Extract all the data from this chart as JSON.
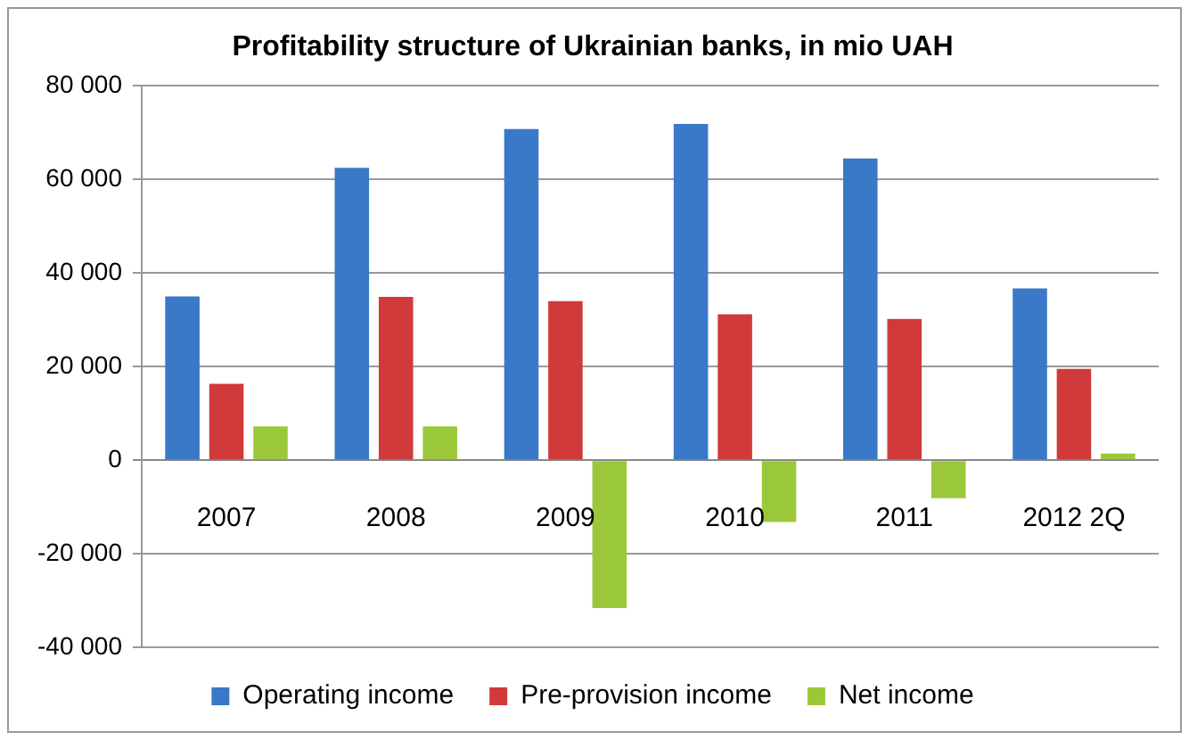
{
  "chart_data": {
    "type": "bar",
    "title": "Profitability structure of Ukrainian banks, in mio UAH",
    "categories": [
      "2007",
      "2008",
      "2009",
      "2010",
      "2011",
      "2012 2Q"
    ],
    "series": [
      {
        "name": "Operating income",
        "color": "#3a78c8",
        "values": [
          35000,
          62500,
          70800,
          71900,
          64500,
          36700
        ]
      },
      {
        "name": "Pre-provision income",
        "color": "#d03a3a",
        "values": [
          16300,
          34900,
          34000,
          31200,
          30200,
          19500
        ]
      },
      {
        "name": "Net income",
        "color": "#9bc83a",
        "values": [
          7200,
          7200,
          -31600,
          -13200,
          -8100,
          1400
        ]
      }
    ],
    "ylim": [
      -40000,
      80000
    ],
    "yticks": [
      {
        "value": -40000,
        "label": "-40 000"
      },
      {
        "value": -20000,
        "label": "-20 000"
      },
      {
        "value": 0,
        "label": "0"
      },
      {
        "value": 20000,
        "label": "20 000"
      },
      {
        "value": 40000,
        "label": "40 000"
      },
      {
        "value": 60000,
        "label": "60 000"
      },
      {
        "value": 80000,
        "label": "80 000"
      }
    ],
    "grid": "y",
    "legend": "bottom"
  }
}
